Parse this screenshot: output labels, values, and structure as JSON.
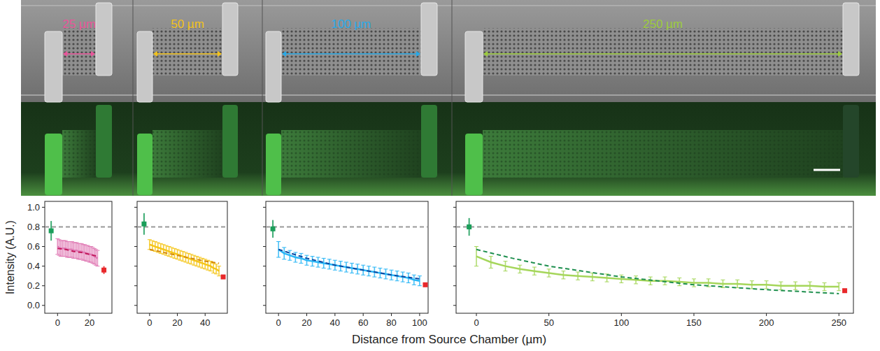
{
  "figure": {
    "xlabel": "Distance from Source Chamber (µm)",
    "channel_labels": [
      {
        "text": "25 µm",
        "color": "#e8559a"
      },
      {
        "text": "50 µm",
        "color": "#f2c21b"
      },
      {
        "text": "100 µm",
        "color": "#29a9e6"
      },
      {
        "text": "250 µm",
        "color": "#9ccc3c"
      }
    ]
  },
  "chart_data": [
    {
      "type": "line",
      "ylabel": "Intensity (A.U.)",
      "xlim": [
        -8,
        34
      ],
      "ylim": [
        -0.08,
        1.06
      ],
      "xticks": [
        0,
        20
      ],
      "yticks": [
        {
          "value": 0,
          "label": "0.0"
        },
        0.2,
        0.4,
        0.6,
        0.8,
        {
          "value": 1,
          "label": "1.0"
        }
      ],
      "series": [
        {
          "type": "line",
          "line_style": "dashed",
          "color": "#999999",
          "x": [
            -8,
            34
          ],
          "values": [
            0.8,
            0.8
          ]
        },
        {
          "type": "scatter",
          "marker": "square",
          "color": "#1b9e5a",
          "x": [
            -4
          ],
          "values": [
            0.76
          ],
          "errors": [
            0.1
          ]
        },
        {
          "type": "line",
          "color": "#e07bb5",
          "x": [
            0,
            1,
            2,
            3,
            4,
            5,
            6,
            7,
            8,
            9,
            10,
            11,
            12,
            13,
            14,
            15,
            16,
            17,
            18,
            19,
            20,
            21,
            22,
            23,
            24,
            25
          ],
          "values": [
            0.6,
            0.59,
            0.58,
            0.58,
            0.58,
            0.58,
            0.57,
            0.57,
            0.57,
            0.57,
            0.56,
            0.56,
            0.56,
            0.55,
            0.55,
            0.55,
            0.54,
            0.54,
            0.53,
            0.53,
            0.52,
            0.52,
            0.51,
            0.5,
            0.49,
            0.48
          ],
          "errors": [
            0.08,
            0.08,
            0.08,
            0.08,
            0.08,
            0.08,
            0.08,
            0.08,
            0.08,
            0.08,
            0.08,
            0.08,
            0.08,
            0.08,
            0.08,
            0.08,
            0.08,
            0.08,
            0.08,
            0.08,
            0.08,
            0.08,
            0.08,
            0.08,
            0.08,
            0.08
          ]
        },
        {
          "type": "line",
          "line_style": "dashed",
          "color": "#c2185b",
          "x": [
            0,
            5,
            10,
            15,
            20,
            25
          ],
          "values": [
            0.58,
            0.57,
            0.55,
            0.54,
            0.52,
            0.5
          ]
        },
        {
          "type": "scatter",
          "marker": "square",
          "color": "#e8282b",
          "x": [
            29
          ],
          "values": [
            0.36
          ],
          "errors": [
            0.04
          ]
        }
      ]
    },
    {
      "type": "line",
      "tick_labels": "x",
      "xlim": [
        -9,
        56
      ],
      "ylim": [
        -0.08,
        1.06
      ],
      "xticks": [
        0,
        20,
        40
      ],
      "yticks": [
        {
          "value": 0,
          "label": "0.0"
        },
        0.2,
        0.4,
        0.6,
        0.8,
        {
          "value": 1,
          "label": "1.0"
        }
      ],
      "series": [
        {
          "type": "line",
          "line_style": "dashed",
          "color": "#999999",
          "x": [
            -9,
            56
          ],
          "values": [
            0.8,
            0.8
          ]
        },
        {
          "type": "scatter",
          "marker": "square",
          "color": "#1b9e5a",
          "x": [
            -4
          ],
          "values": [
            0.83
          ],
          "errors": [
            0.11
          ]
        },
        {
          "type": "line",
          "color": "#f5c518",
          "x": [
            0,
            2,
            4,
            6,
            8,
            10,
            12,
            14,
            16,
            18,
            20,
            22,
            24,
            26,
            28,
            30,
            32,
            34,
            36,
            38,
            40,
            42,
            44,
            46,
            48,
            50
          ],
          "values": [
            0.62,
            0.61,
            0.6,
            0.59,
            0.58,
            0.57,
            0.56,
            0.55,
            0.54,
            0.53,
            0.52,
            0.51,
            0.5,
            0.49,
            0.48,
            0.47,
            0.46,
            0.45,
            0.44,
            0.43,
            0.42,
            0.41,
            0.4,
            0.38,
            0.37,
            0.35
          ],
          "errors": [
            0.05,
            0.05,
            0.05,
            0.05,
            0.05,
            0.05,
            0.05,
            0.05,
            0.05,
            0.05,
            0.05,
            0.05,
            0.05,
            0.05,
            0.05,
            0.05,
            0.05,
            0.05,
            0.05,
            0.05,
            0.05,
            0.05,
            0.05,
            0.05,
            0.05,
            0.05
          ]
        },
        {
          "type": "line",
          "line_style": "dashed",
          "color": "#d4890f",
          "x": [
            0,
            10,
            20,
            30,
            40,
            50
          ],
          "values": [
            0.57,
            0.54,
            0.51,
            0.48,
            0.45,
            0.43
          ]
        },
        {
          "type": "scatter",
          "marker": "square",
          "color": "#e8282b",
          "x": [
            53
          ],
          "values": [
            0.29
          ],
          "errors": [
            0.02
          ]
        }
      ]
    },
    {
      "type": "line",
      "tick_labels": "x",
      "xlim": [
        -9,
        106
      ],
      "ylim": [
        -0.08,
        1.06
      ],
      "xticks": [
        0,
        20,
        40,
        60,
        80,
        100
      ],
      "yticks": [
        {
          "value": 0,
          "label": "0.0"
        },
        0.2,
        0.4,
        0.6,
        0.8,
        {
          "value": 1,
          "label": "1.0"
        }
      ],
      "series": [
        {
          "type": "line",
          "line_style": "dashed",
          "color": "#999999",
          "x": [
            -9,
            106
          ],
          "values": [
            0.8,
            0.8
          ]
        },
        {
          "type": "scatter",
          "marker": "square",
          "color": "#1b9e5a",
          "x": [
            -4
          ],
          "values": [
            0.78
          ],
          "errors": [
            0.09
          ]
        },
        {
          "type": "line",
          "color": "#29b6f6",
          "x": [
            0,
            4,
            8,
            12,
            16,
            20,
            24,
            28,
            32,
            36,
            40,
            44,
            48,
            52,
            56,
            60,
            64,
            68,
            72,
            76,
            80,
            84,
            88,
            92,
            96,
            100
          ],
          "values": [
            0.57,
            0.53,
            0.51,
            0.49,
            0.48,
            0.46,
            0.45,
            0.44,
            0.43,
            0.42,
            0.41,
            0.4,
            0.39,
            0.38,
            0.37,
            0.36,
            0.35,
            0.34,
            0.33,
            0.32,
            0.31,
            0.3,
            0.29,
            0.28,
            0.26,
            0.25
          ],
          "errors": [
            0.08,
            0.06,
            0.05,
            0.05,
            0.05,
            0.05,
            0.05,
            0.05,
            0.05,
            0.05,
            0.05,
            0.05,
            0.05,
            0.05,
            0.05,
            0.05,
            0.05,
            0.05,
            0.05,
            0.05,
            0.05,
            0.05,
            0.05,
            0.05,
            0.05,
            0.05
          ]
        },
        {
          "type": "line",
          "line_style": "dashed",
          "color": "#0d47a1",
          "x": [
            0,
            20,
            40,
            60,
            80,
            100
          ],
          "values": [
            0.57,
            0.48,
            0.41,
            0.36,
            0.31,
            0.27
          ]
        },
        {
          "type": "scatter",
          "marker": "square",
          "color": "#e8282b",
          "x": [
            104
          ],
          "values": [
            0.21
          ],
          "errors": [
            0.02
          ]
        }
      ]
    },
    {
      "type": "line",
      "tick_labels": "x",
      "xlim": [
        -14,
        260
      ],
      "ylim": [
        -0.08,
        1.06
      ],
      "xticks": [
        0,
        50,
        100,
        150,
        200,
        250
      ],
      "yticks": [
        {
          "value": 0,
          "label": "0.0"
        },
        0.2,
        0.4,
        0.6,
        0.8,
        {
          "value": 1,
          "label": "1.0"
        }
      ],
      "series": [
        {
          "type": "line",
          "line_style": "dashed",
          "color": "#999999",
          "x": [
            -14,
            260
          ],
          "values": [
            0.8,
            0.8
          ]
        },
        {
          "type": "scatter",
          "marker": "square",
          "color": "#1b9e5a",
          "x": [
            -5
          ],
          "values": [
            0.8
          ],
          "errors": [
            0.09
          ]
        },
        {
          "type": "line",
          "color": "#a5d65a",
          "x": [
            0,
            10,
            20,
            30,
            40,
            50,
            60,
            70,
            80,
            90,
            100,
            110,
            120,
            130,
            140,
            150,
            160,
            170,
            180,
            190,
            200,
            210,
            220,
            230,
            240,
            250
          ],
          "values": [
            0.5,
            0.44,
            0.4,
            0.37,
            0.35,
            0.33,
            0.31,
            0.3,
            0.29,
            0.28,
            0.27,
            0.26,
            0.25,
            0.25,
            0.24,
            0.23,
            0.23,
            0.22,
            0.22,
            0.21,
            0.21,
            0.2,
            0.2,
            0.2,
            0.19,
            0.19
          ],
          "errors": [
            0.1,
            0.06,
            0.05,
            0.04,
            0.04,
            0.04,
            0.04,
            0.04,
            0.04,
            0.04,
            0.04,
            0.04,
            0.04,
            0.04,
            0.04,
            0.04,
            0.04,
            0.04,
            0.04,
            0.04,
            0.04,
            0.04,
            0.04,
            0.04,
            0.04,
            0.04
          ]
        },
        {
          "type": "line",
          "line_style": "dashed",
          "color": "#1e8f4e",
          "x": [
            0,
            25,
            50,
            100,
            150,
            200,
            250
          ],
          "values": [
            0.57,
            0.48,
            0.4,
            0.29,
            0.21,
            0.16,
            0.12
          ]
        },
        {
          "type": "scatter",
          "marker": "square",
          "color": "#e8282b",
          "x": [
            254
          ],
          "values": [
            0.15
          ],
          "errors": [
            0.02
          ]
        }
      ]
    }
  ]
}
